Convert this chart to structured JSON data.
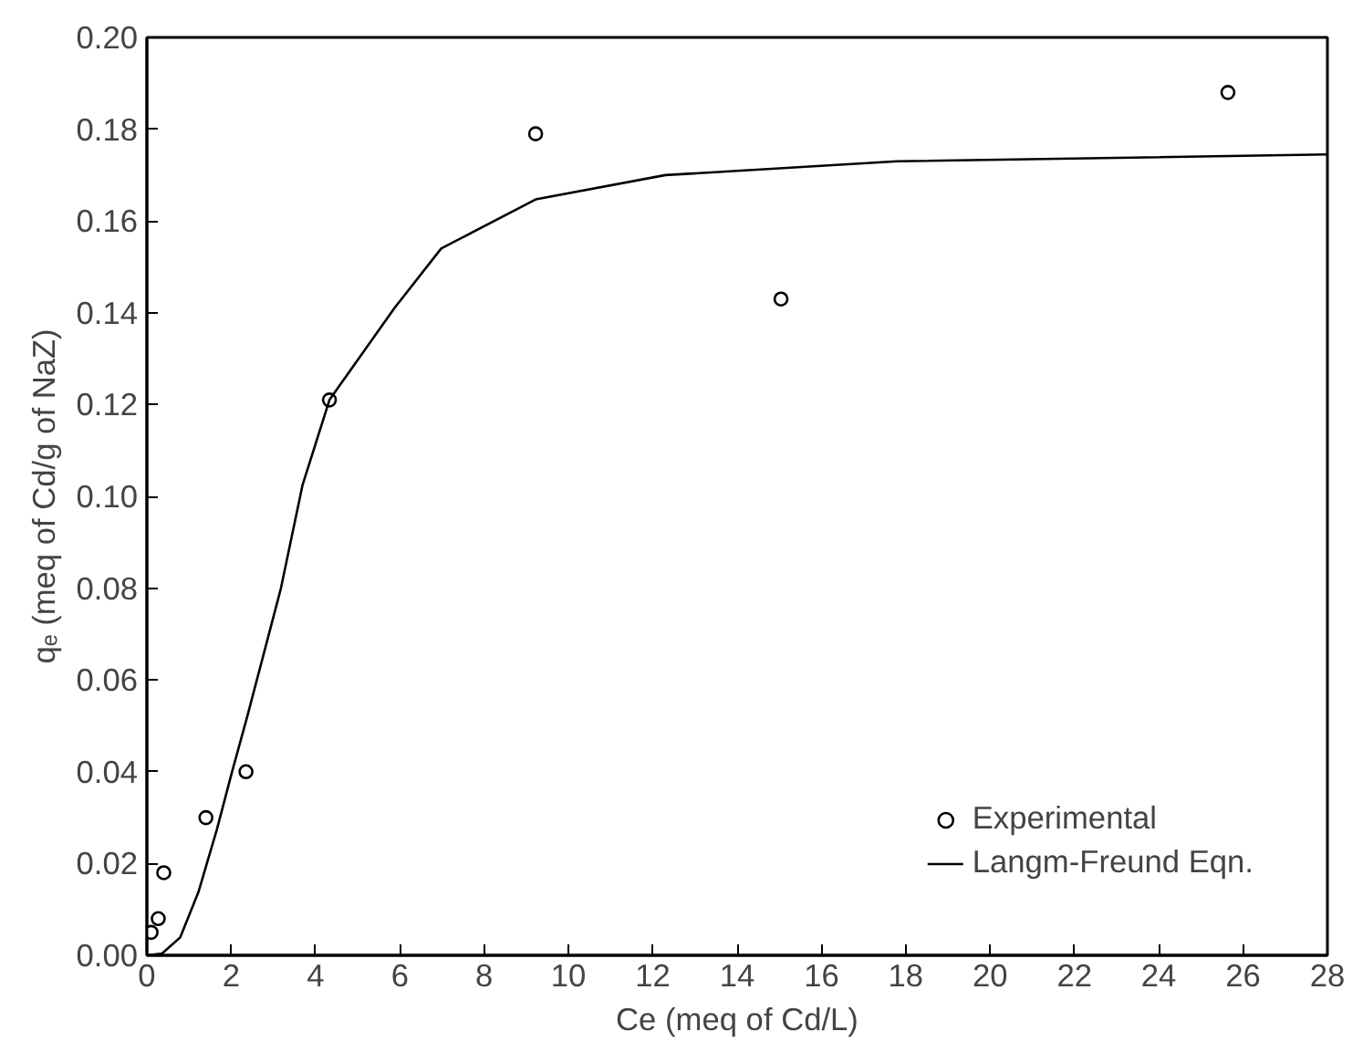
{
  "chart_data": {
    "type": "scatter",
    "xlabel": "Ce (meq of Cd/L)",
    "ylabel": "qₑ (meq of Cd/g of NaZ)",
    "xlim": [
      0,
      28
    ],
    "ylim": [
      0,
      0.2
    ],
    "xticks": [
      0,
      2,
      4,
      6,
      8,
      10,
      12,
      14,
      16,
      18,
      20,
      22,
      24,
      26,
      28
    ],
    "yticks": [
      {
        "value": 0,
        "label": "0.00"
      },
      {
        "value": 0.02,
        "label": "0.02"
      },
      {
        "value": 0.04,
        "label": "0.04"
      },
      {
        "value": 0.06,
        "label": "0.06"
      },
      {
        "value": 0.08,
        "label": "0.08"
      },
      {
        "value": 0.1,
        "label": "0.10"
      },
      {
        "value": 0.12,
        "label": "0.12"
      },
      {
        "value": 0.14,
        "label": "0.14"
      },
      {
        "value": 0.16,
        "label": "0.16"
      },
      {
        "value": 0.18,
        "label": "0.18"
      },
      {
        "value": 0.2,
        "label": "0.20"
      }
    ],
    "grid": false,
    "legend": "bottom right",
    "series": [
      {
        "name": "Experimental",
        "marker": "circle",
        "color": "#000000",
        "x": [
          0.1,
          0.27,
          0.4,
          1.4,
          2.35,
          4.33,
          9.22,
          15.04,
          25.64
        ],
        "values": [
          0.005,
          0.008,
          0.018,
          0.03,
          0.04,
          0.121,
          0.179,
          0.143,
          0.188
        ]
      },
      {
        "name": "Langm-Freund Eqn.",
        "type": "line",
        "marker": "none",
        "line_style": "solid",
        "color": "#000000",
        "x": [
          0,
          0.36,
          0.79,
          1.22,
          1.66,
          2.02,
          2.38,
          3.18,
          3.69,
          4.33,
          5.87,
          6.98,
          9.22,
          12.3,
          17.8,
          28
        ],
        "values": [
          0,
          0.0004,
          0.0039,
          0.0137,
          0.0274,
          0.04,
          0.052,
          0.08,
          0.1024,
          0.121,
          0.141,
          0.154,
          0.1647,
          0.17,
          0.173,
          0.1745
        ]
      }
    ]
  }
}
